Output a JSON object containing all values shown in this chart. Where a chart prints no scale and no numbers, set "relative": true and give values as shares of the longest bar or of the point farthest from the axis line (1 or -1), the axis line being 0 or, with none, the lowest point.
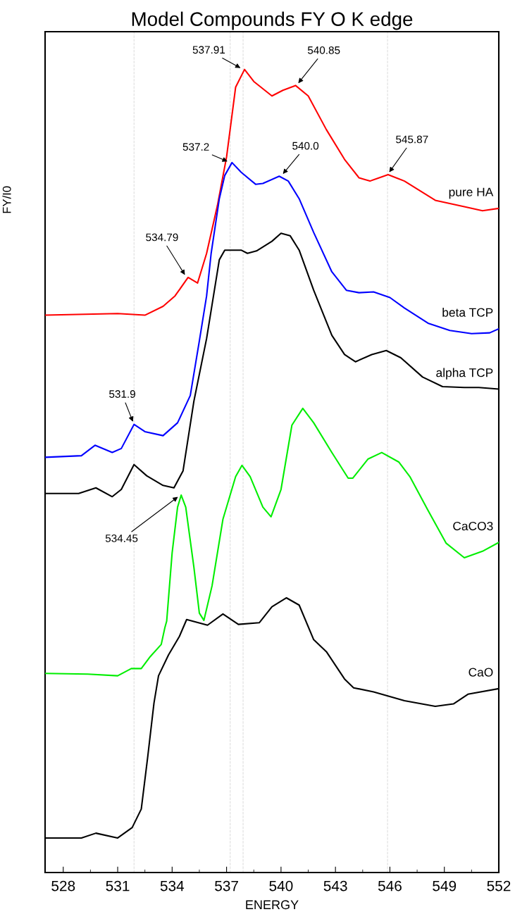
{
  "chart_data": {
    "type": "line",
    "relative": true,
    "title": "Model Compounds FY O K edge",
    "xlabel": "ENERGY",
    "ylabel": "FY/I0",
    "xlim": [
      527,
      552
    ],
    "xticks": [
      528,
      531,
      534,
      537,
      540,
      543,
      546,
      549,
      552
    ],
    "grid": false,
    "legend": false,
    "marker": "none",
    "line_style": "solid",
    "series": [
      {
        "name": "pure HA",
        "color": "#ff0000",
        "x": [
          527,
          531,
          532.5,
          533.5,
          534.16,
          534.88,
          535.4,
          535.9,
          536.5,
          537.0,
          537.5,
          537.99,
          538.5,
          539.5,
          540.1,
          540.8,
          541.5,
          542.5,
          543.5,
          544.3,
          544.9,
          545.9,
          546.8,
          548.5,
          550.1,
          551.1,
          552
        ],
        "values": [
          0.694,
          0.696,
          0.694,
          0.705,
          0.718,
          0.741,
          0.734,
          0.771,
          0.831,
          0.891,
          0.978,
          1.0,
          0.985,
          0.967,
          0.974,
          0.98,
          0.967,
          0.925,
          0.888,
          0.865,
          0.861,
          0.869,
          0.861,
          0.837,
          0.829,
          0.824,
          0.827
        ]
      },
      {
        "name": "beta TCP",
        "color": "#0000ff",
        "x": [
          527,
          529.0,
          529.75,
          530.7,
          531.2,
          531.9,
          532.5,
          533.5,
          534.3,
          535.0,
          535.5,
          535.9,
          536.15,
          536.6,
          536.9,
          537.3,
          537.8,
          538.6,
          539.0,
          539.9,
          540.4,
          541.0,
          541.8,
          542.8,
          543.6,
          544.3,
          545.1,
          546.0,
          546.8,
          548.1,
          549.3,
          550.5,
          551.5,
          552
        ],
        "values": [
          0.517,
          0.519,
          0.532,
          0.523,
          0.528,
          0.558,
          0.549,
          0.544,
          0.56,
          0.594,
          0.662,
          0.718,
          0.771,
          0.839,
          0.868,
          0.884,
          0.872,
          0.857,
          0.858,
          0.867,
          0.861,
          0.839,
          0.797,
          0.748,
          0.725,
          0.722,
          0.723,
          0.716,
          0.703,
          0.684,
          0.675,
          0.671,
          0.672,
          0.677
        ]
      },
      {
        "name": "alpha TCP",
        "color": "#000000",
        "x": [
          527,
          528.85,
          529.8,
          530.7,
          531.2,
          531.9,
          532.6,
          533.5,
          534.1,
          534.6,
          535.2,
          535.9,
          536.6,
          536.9,
          537.8,
          538.15,
          538.65,
          539.5,
          540.0,
          540.5,
          541.0,
          541.8,
          542.8,
          543.5,
          544.1,
          545.0,
          545.8,
          546.6,
          547.8,
          548.9,
          550.1,
          550.9,
          552
        ],
        "values": [
          0.472,
          0.472,
          0.479,
          0.468,
          0.477,
          0.508,
          0.494,
          0.482,
          0.479,
          0.5,
          0.587,
          0.665,
          0.763,
          0.775,
          0.775,
          0.771,
          0.774,
          0.786,
          0.796,
          0.793,
          0.775,
          0.725,
          0.669,
          0.645,
          0.636,
          0.645,
          0.65,
          0.641,
          0.617,
          0.605,
          0.604,
          0.604,
          0.602
        ]
      },
      {
        "name": "CaCO3",
        "color": "#00ee00",
        "x": [
          527,
          529.35,
          531.0,
          531.75,
          532.3,
          532.8,
          533.4,
          533.6,
          533.7,
          534.0,
          534.3,
          534.5,
          534.75,
          535.2,
          535.5,
          535.75,
          536.2,
          536.8,
          537.5,
          537.85,
          538.3,
          539.0,
          539.45,
          540.0,
          540.6,
          541.2,
          541.8,
          542.8,
          543.7,
          543.95,
          544.8,
          545.55,
          546.5,
          547.1,
          548.1,
          549.1,
          550.1,
          551.1,
          552
        ],
        "values": [
          0.248,
          0.247,
          0.245,
          0.254,
          0.254,
          0.269,
          0.284,
          0.305,
          0.313,
          0.398,
          0.455,
          0.47,
          0.455,
          0.38,
          0.323,
          0.314,
          0.357,
          0.44,
          0.493,
          0.507,
          0.493,
          0.455,
          0.443,
          0.477,
          0.557,
          0.578,
          0.56,
          0.523,
          0.491,
          0.491,
          0.515,
          0.523,
          0.511,
          0.493,
          0.451,
          0.41,
          0.392,
          0.4,
          0.411
        ]
      },
      {
        "name": "CaO",
        "color": "#000000",
        "x": [
          527,
          529.0,
          529.8,
          531.0,
          531.8,
          532.3,
          532.65,
          533.0,
          533.25,
          533.8,
          534.4,
          534.8,
          535.95,
          536.8,
          537.65,
          538.8,
          539.5,
          540.3,
          541.0,
          541.8,
          542.5,
          543.5,
          544.0,
          545.1,
          546.8,
          548.5,
          549.5,
          550.3,
          552
        ],
        "values": [
          0.043,
          0.043,
          0.049,
          0.043,
          0.056,
          0.079,
          0.143,
          0.211,
          0.245,
          0.271,
          0.294,
          0.315,
          0.308,
          0.322,
          0.309,
          0.311,
          0.331,
          0.342,
          0.333,
          0.29,
          0.275,
          0.241,
          0.23,
          0.225,
          0.214,
          0.207,
          0.21,
          0.222,
          0.229
        ]
      }
    ],
    "ref_lines": [
      {
        "axis": "x",
        "value": 531.9,
        "color": "#d9d9d9",
        "line_style": "dashed"
      },
      {
        "axis": "x",
        "value": 537.2,
        "color": "#d9d9d9",
        "line_style": "dashed"
      },
      {
        "axis": "x",
        "value": 537.91,
        "color": "#d9d9d9",
        "line_style": "dashed"
      },
      {
        "axis": "x",
        "value": 545.87,
        "color": "#d9d9d9",
        "line_style": "dashed"
      }
    ],
    "annotations": [
      {
        "text": "537.91",
        "x": 537.91,
        "y": 1.0
      },
      {
        "text": "540.85",
        "x": 540.85,
        "y": 0.98
      },
      {
        "text": "537.2",
        "x": 537.2,
        "y": 0.884
      },
      {
        "text": "540.0",
        "x": 540.0,
        "y": 0.867
      },
      {
        "text": "545.87",
        "x": 545.87,
        "y": 0.869
      },
      {
        "text": "534.79",
        "x": 534.79,
        "y": 0.741
      },
      {
        "text": "531.9",
        "x": 531.9,
        "y": 0.558
      },
      {
        "text": "534.45",
        "x": 534.45,
        "y": 0.47
      }
    ]
  }
}
